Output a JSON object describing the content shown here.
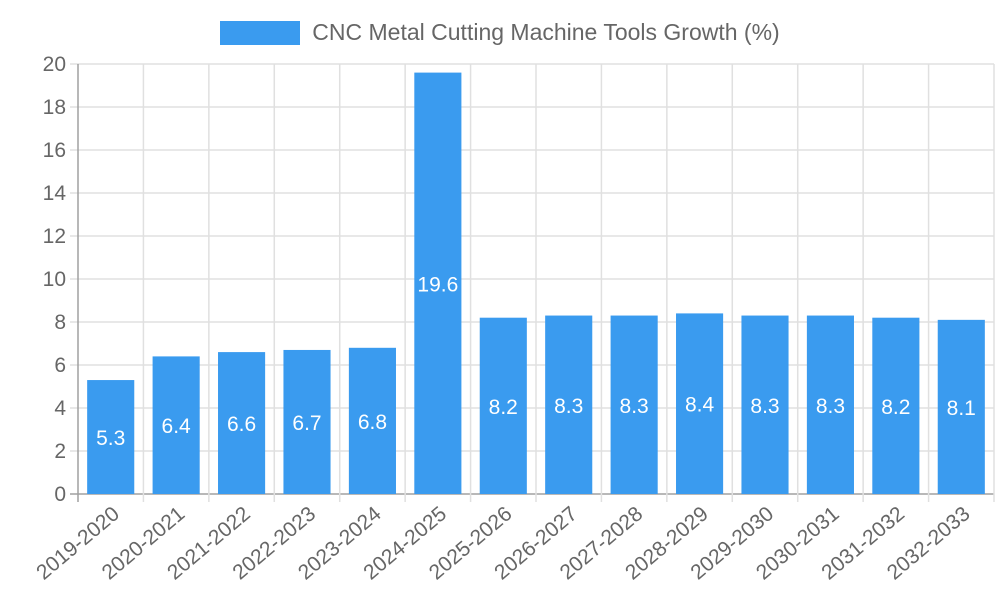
{
  "chart_data": {
    "type": "bar",
    "title": "",
    "legend": [
      {
        "label": "CNC Metal Cutting Machine Tools Growth (%)",
        "color": "#3a9bef"
      }
    ],
    "legend_position": "top",
    "categories": [
      "2019-2020",
      "2020-2021",
      "2021-2022",
      "2022-2023",
      "2023-2024",
      "2024-2025",
      "2025-2026",
      "2026-2027",
      "2027-2028",
      "2028-2029",
      "2029-2030",
      "2030-2031",
      "2031-2032",
      "2032-2033"
    ],
    "series": [
      {
        "name": "CNC Metal Cutting Machine Tools Growth (%)",
        "values": [
          5.3,
          6.4,
          6.6,
          6.7,
          6.8,
          19.6,
          8.2,
          8.3,
          8.3,
          8.4,
          8.3,
          8.3,
          8.2,
          8.1
        ],
        "color": "#3a9bef"
      }
    ],
    "xlabel": "",
    "ylabel": "",
    "ylim": [
      0,
      20
    ],
    "yticks": [
      0,
      2,
      4,
      6,
      8,
      10,
      12,
      14,
      16,
      18,
      20
    ],
    "grid": true,
    "data_labels": true
  }
}
